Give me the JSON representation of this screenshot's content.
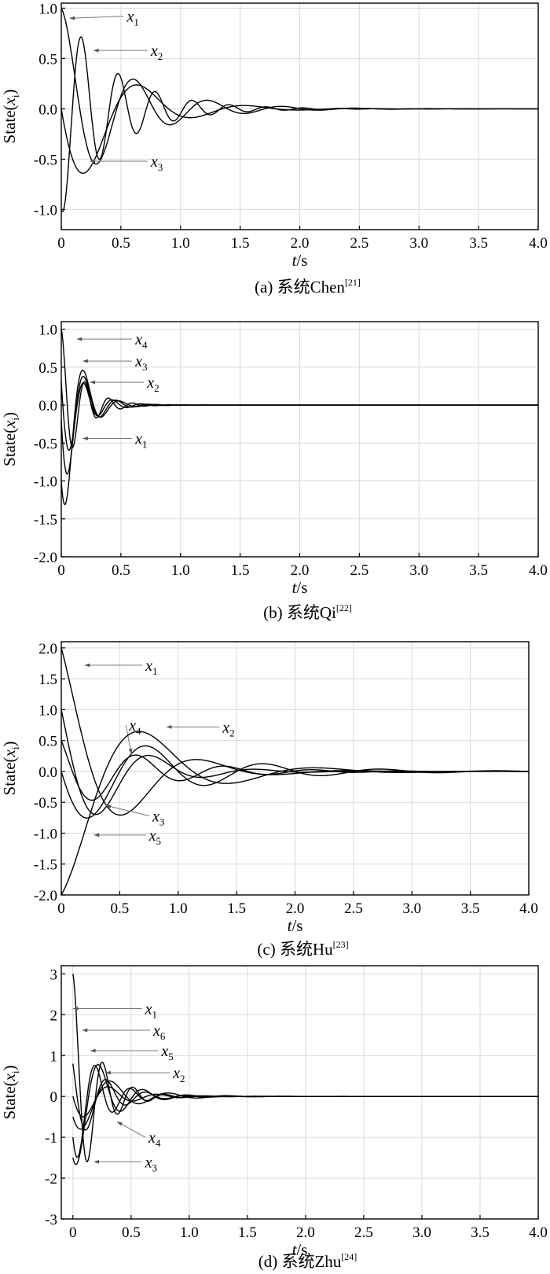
{
  "figure": {
    "x_axis_label_italic": "t",
    "x_axis_label_unit": "/s",
    "y_axis_label_main": "State(",
    "y_axis_label_var": "x",
    "y_axis_label_sub": "i",
    "y_axis_label_close": ")"
  },
  "chart_data": [
    {
      "type": "line",
      "caption_prefix": "(a)",
      "caption_text": "系统Chen",
      "caption_ref": "[21]",
      "xlim": [
        0,
        4.0
      ],
      "ylim": [
        -1.2,
        1.05
      ],
      "xticks": [
        "0",
        "0.5",
        "1.0",
        "1.5",
        "2.0",
        "2.5",
        "3.0",
        "3.5",
        "4.0"
      ],
      "yticks": [
        {
          "v": 1.0,
          "label": "1.0"
        },
        {
          "v": 0.5,
          "label": "0.5"
        },
        {
          "v": 0.0,
          "label": "0.0"
        },
        {
          "v": -0.5,
          "label": "-0.5"
        },
        {
          "v": -1.0,
          "label": "-1.0"
        }
      ],
      "series": [
        {
          "name_var": "x",
          "name_sub": "1",
          "x0": 1.0,
          "amp": 1.0,
          "decay": 2.0,
          "period": 0.62,
          "label_at": [
            0.07,
            0.9
          ],
          "text_at": [
            0.55,
            0.92
          ]
        },
        {
          "name_var": "x",
          "name_sub": "2",
          "x0": -1.0,
          "amp": 1.05,
          "decay": 2.3,
          "period": 0.31,
          "label_at": [
            0.27,
            0.58
          ],
          "text_at": [
            0.75,
            0.58
          ]
        },
        {
          "name_var": "x",
          "name_sub": "3",
          "x0": 0.0,
          "amp": 1.0,
          "decay": 2.2,
          "period": 0.9,
          "label_at": [
            0.24,
            -0.52
          ],
          "text_at": [
            0.75,
            -0.52
          ]
        }
      ]
    },
    {
      "type": "line",
      "caption_prefix": "(b)",
      "caption_text": "系统Qi",
      "caption_ref": "[22]",
      "xlim": [
        0,
        4.0
      ],
      "ylim": [
        -2.0,
        1.1
      ],
      "xticks": [
        "0",
        "0.5",
        "1.0",
        "1.5",
        "2.0",
        "2.5",
        "3.0",
        "3.5",
        "4.0"
      ],
      "yticks": [
        {
          "v": 1.0,
          "label": "1.0"
        },
        {
          "v": 0.5,
          "label": "0.5"
        },
        {
          "v": 0.0,
          "label": "0.0"
        },
        {
          "v": -0.5,
          "label": "-0.5"
        },
        {
          "v": -1.0,
          "label": "-1.0"
        },
        {
          "v": -1.5,
          "label": "-1.5"
        },
        {
          "v": -2.0,
          "label": "-2.0"
        }
      ],
      "series": [
        {
          "name_var": "x",
          "name_sub": "4",
          "x0": 1.0,
          "amp": 1.0,
          "decay": 6.0,
          "period": 0.2,
          "label_at": [
            0.13,
            0.87
          ],
          "text_at": [
            0.62,
            0.87
          ]
        },
        {
          "name_var": "x",
          "name_sub": "3",
          "x0": 0.3,
          "amp": 0.9,
          "decay": 6.0,
          "period": 0.24,
          "label_at": [
            0.18,
            0.58
          ],
          "text_at": [
            0.62,
            0.58
          ]
        },
        {
          "name_var": "x",
          "name_sub": "2",
          "x0": -0.2,
          "amp": 1.3,
          "decay": 6.5,
          "period": 0.27,
          "label_at": [
            0.24,
            0.3
          ],
          "text_at": [
            0.72,
            0.3
          ]
        },
        {
          "name_var": "x",
          "name_sub": "1",
          "x0": -1.0,
          "amp": 1.7,
          "decay": 7.0,
          "period": 0.3,
          "label_at": [
            0.18,
            -0.44
          ],
          "text_at": [
            0.62,
            -0.44
          ]
        }
      ]
    },
    {
      "type": "line",
      "caption_prefix": "(c)",
      "caption_text": "系统Hu",
      "caption_ref": "[23]",
      "xlim": [
        0,
        4.0
      ],
      "ylim": [
        -2.0,
        2.1
      ],
      "xticks": [
        "0",
        "0.5",
        "1.0",
        "1.5",
        "2.0",
        "2.5",
        "3.0",
        "3.5",
        "4.0"
      ],
      "yticks": [
        {
          "v": 2.0,
          "label": "2.0"
        },
        {
          "v": 1.5,
          "label": "1.5"
        },
        {
          "v": 1.0,
          "label": "1.0"
        },
        {
          "v": 0.5,
          "label": "0.5"
        },
        {
          "v": 0.0,
          "label": "0.0"
        },
        {
          "v": -0.5,
          "label": "-0.5"
        },
        {
          "v": -1.0,
          "label": "-1.0"
        },
        {
          "v": -1.5,
          "label": "-1.5"
        },
        {
          "v": -2.0,
          "label": "-2.0"
        }
      ],
      "series": [
        {
          "name_var": "x",
          "name_sub": "1",
          "x0": 2.0,
          "amp": 2.1,
          "decay": 2.0,
          "period": 1.3,
          "label_at": [
            0.2,
            1.72
          ],
          "text_at": [
            0.72,
            1.72
          ]
        },
        {
          "name_var": "x",
          "name_sub": "2",
          "x0": 0.0,
          "amp": 1.0,
          "decay": 1.2,
          "period": 1.0,
          "label_at": [
            0.9,
            0.72
          ],
          "text_at": [
            1.38,
            0.72
          ]
        },
        {
          "name_var": "x",
          "name_sub": "4",
          "x0": 0.5,
          "amp": 0.7,
          "decay": 1.5,
          "period": 0.75,
          "label_at": [
            0.6,
            0.28
          ],
          "text_at": [
            0.58,
            0.75
          ]
        },
        {
          "name_var": "x",
          "name_sub": "3",
          "x0": 1.0,
          "amp": 1.4,
          "decay": 2.2,
          "period": 0.9,
          "label_at": [
            0.38,
            -0.55
          ],
          "text_at": [
            0.78,
            -0.72
          ]
        },
        {
          "name_var": "x",
          "name_sub": "5",
          "x0": -2.0,
          "amp": 2.0,
          "decay": 1.6,
          "period": 1.5,
          "label_at": [
            0.28,
            -1.03
          ],
          "text_at": [
            0.75,
            -1.03
          ]
        }
      ]
    },
    {
      "type": "line",
      "caption_prefix": "(d)",
      "caption_text": "系统Zhu",
      "caption_ref": "[24]",
      "xlim": [
        -0.1,
        4.0
      ],
      "ylim": [
        -3.0,
        3.2
      ],
      "xticks": [
        "0",
        "0.5",
        "1.0",
        "1.5",
        "2.0",
        "2.5",
        "3.0",
        "3.5",
        "4.0"
      ],
      "yticks": [
        {
          "v": 3,
          "label": "3"
        },
        {
          "v": 2,
          "label": "2"
        },
        {
          "v": 1,
          "label": "1"
        },
        {
          "v": 0,
          "label": "0"
        },
        {
          "v": -1,
          "label": "-1"
        },
        {
          "v": -2,
          "label": "-2"
        },
        {
          "v": -3,
          "label": "-3"
        }
      ],
      "series": [
        {
          "name_var": "x",
          "name_sub": "1",
          "x0": 3.0,
          "amp": 3.0,
          "decay": 5.0,
          "period": 0.26,
          "label_at": [
            0.0,
            2.15
          ],
          "text_at": [
            0.62,
            2.15
          ]
        },
        {
          "name_var": "x",
          "name_sub": "6",
          "x0": -1.0,
          "amp": 1.8,
          "decay": 4.5,
          "period": 0.3,
          "label_at": [
            0.08,
            1.62
          ],
          "text_at": [
            0.69,
            1.62
          ]
        },
        {
          "name_var": "x",
          "name_sub": "5",
          "x0": 0.8,
          "amp": 1.3,
          "decay": 4.0,
          "period": 0.34,
          "label_at": [
            0.15,
            1.12
          ],
          "text_at": [
            0.76,
            1.12
          ]
        },
        {
          "name_var": "x",
          "name_sub": "2",
          "x0": 0.0,
          "amp": 0.7,
          "decay": 3.5,
          "period": 0.42,
          "label_at": [
            0.28,
            0.58
          ],
          "text_at": [
            0.86,
            0.58
          ]
        },
        {
          "name_var": "x",
          "name_sub": "4",
          "x0": -0.5,
          "amp": 1.0,
          "decay": 3.0,
          "period": 0.5,
          "label_at": [
            0.38,
            -0.62
          ],
          "text_at": [
            0.65,
            -1.0
          ]
        },
        {
          "name_var": "x",
          "name_sub": "3",
          "x0": -1.5,
          "amp": 1.9,
          "decay": 4.0,
          "period": 0.38,
          "label_at": [
            0.18,
            -1.6
          ],
          "text_at": [
            0.62,
            -1.6
          ]
        }
      ]
    }
  ]
}
